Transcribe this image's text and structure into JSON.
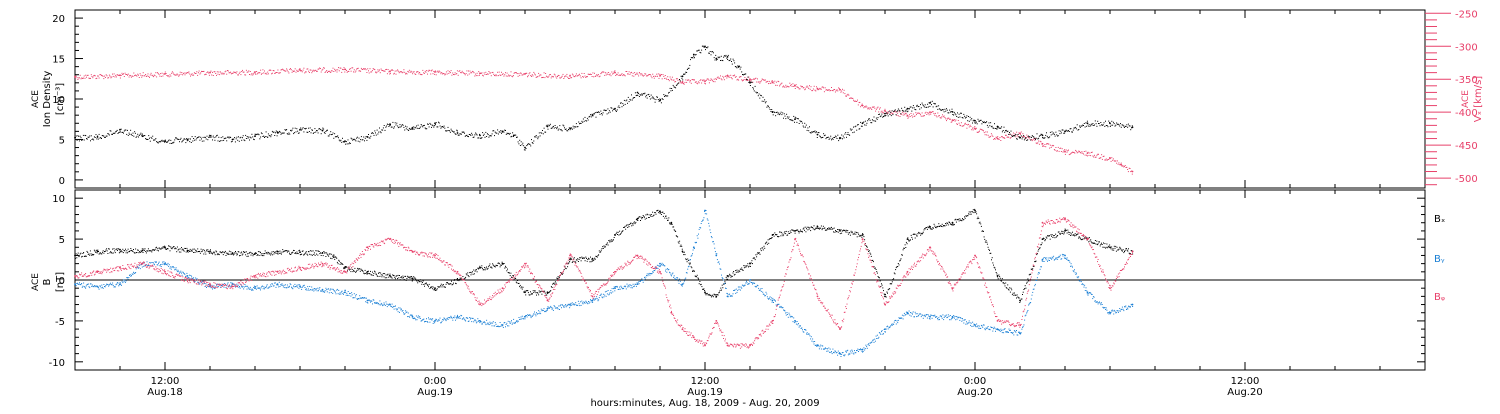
{
  "colors": {
    "black": "#000000",
    "pink": "#e8406a",
    "blue": "#1a7fd4"
  },
  "x_axis": {
    "range_hours": [
      0,
      60
    ],
    "major_ticks": [
      {
        "h": 4,
        "time": "12:00",
        "date": "Aug.18"
      },
      {
        "h": 16,
        "time": "0:00",
        "date": "Aug.19"
      },
      {
        "h": 28,
        "time": "12:00",
        "date": "Aug.19"
      },
      {
        "h": 40,
        "time": "0:00",
        "date": "Aug.20"
      },
      {
        "h": 52,
        "time": "12:00",
        "date": "Aug.20"
      }
    ],
    "title": "hours:minutes, Aug. 18, 2009 - Aug. 20, 2009"
  },
  "chart_data": [
    {
      "type": "scatter",
      "panel": "top",
      "ylabel_left": [
        "ACE",
        "Ion Density",
        "[cm⁻³]"
      ],
      "ylabel_right": [
        "ACE",
        "Vₓ [km/s]"
      ],
      "ylim_left": [
        -1,
        21
      ],
      "yticks_left": [
        0,
        5,
        10,
        15,
        20
      ],
      "ylim_right": [
        -515,
        -245
      ],
      "yticks_right": [
        -500,
        -450,
        -400,
        -350,
        -300,
        -250
      ],
      "series": [
        {
          "axis": "left",
          "color": "black",
          "points": [
            [
              0,
              5.2
            ],
            [
              1,
              5.3
            ],
            [
              2,
              6.2
            ],
            [
              3,
              5.4
            ],
            [
              4,
              4.8
            ],
            [
              5,
              5.0
            ],
            [
              6,
              5.3
            ],
            [
              7,
              5.0
            ],
            [
              8,
              5.4
            ],
            [
              9,
              5.9
            ],
            [
              10,
              6.2
            ],
            [
              11,
              6.1
            ],
            [
              12,
              4.8
            ],
            [
              13,
              5.3
            ],
            [
              14,
              6.9
            ],
            [
              15,
              6.3
            ],
            [
              16,
              7.0
            ],
            [
              17,
              5.8
            ],
            [
              18,
              5.5
            ],
            [
              19,
              6.0
            ],
            [
              19.5,
              5.5
            ],
            [
              20,
              4.0
            ],
            [
              21,
              6.6
            ],
            [
              22,
              6.4
            ],
            [
              23,
              8.0
            ],
            [
              24,
              8.8
            ],
            [
              25,
              10.8
            ],
            [
              26,
              9.8
            ],
            [
              27,
              12.8
            ],
            [
              27.5,
              15.5
            ],
            [
              28,
              16.5
            ],
            [
              28.5,
              15.0
            ],
            [
              29,
              15.2
            ],
            [
              29.5,
              14.0
            ],
            [
              30,
              12.0
            ],
            [
              31,
              8.4
            ],
            [
              32,
              7.5
            ],
            [
              33,
              5.6
            ],
            [
              34,
              5.2
            ],
            [
              35,
              7.0
            ],
            [
              36,
              8.2
            ],
            [
              37,
              8.8
            ],
            [
              38,
              9.5
            ],
            [
              39,
              8.4
            ],
            [
              40,
              7.3
            ],
            [
              41,
              6.6
            ],
            [
              42,
              5.2
            ],
            [
              43,
              5.5
            ],
            [
              44,
              6.0
            ],
            [
              45,
              7.0
            ],
            [
              46,
              7.0
            ],
            [
              47,
              6.5
            ]
          ]
        },
        {
          "axis": "right",
          "color": "pink",
          "points": [
            [
              0,
              -346
            ],
            [
              2,
              -344
            ],
            [
              4,
              -342
            ],
            [
              6,
              -340
            ],
            [
              8,
              -339
            ],
            [
              10,
              -336
            ],
            [
              12,
              -335
            ],
            [
              14,
              -338
            ],
            [
              16,
              -339
            ],
            [
              18,
              -341
            ],
            [
              20,
              -342
            ],
            [
              22,
              -345
            ],
            [
              24,
              -340
            ],
            [
              26,
              -345
            ],
            [
              27,
              -354
            ],
            [
              28,
              -353
            ],
            [
              29,
              -345
            ],
            [
              30,
              -350
            ],
            [
              31,
              -355
            ],
            [
              32,
              -360
            ],
            [
              33,
              -364
            ],
            [
              34,
              -366
            ],
            [
              35,
              -390
            ],
            [
              36,
              -398
            ],
            [
              37,
              -405
            ],
            [
              38,
              -400
            ],
            [
              39,
              -412
            ],
            [
              40,
              -425
            ],
            [
              41,
              -440
            ],
            [
              42,
              -432
            ],
            [
              43,
              -448
            ],
            [
              44,
              -460
            ],
            [
              45,
              -462
            ],
            [
              46,
              -470
            ],
            [
              46.5,
              -480
            ],
            [
              47,
              -490
            ]
          ]
        }
      ]
    },
    {
      "type": "scatter",
      "panel": "bottom",
      "ylabel_left": [
        "ACE",
        "B",
        "[nT]"
      ],
      "ylim": [
        -11,
        11
      ],
      "yticks": [
        -10,
        -5,
        0,
        5,
        10
      ],
      "zero_line": true,
      "series": [
        {
          "name": "Bₓ",
          "color": "black",
          "points": [
            [
              0,
              3.0
            ],
            [
              1,
              3.5
            ],
            [
              2,
              3.7
            ],
            [
              3,
              3.6
            ],
            [
              4,
              4.0
            ],
            [
              5,
              3.6
            ],
            [
              6,
              3.5
            ],
            [
              7,
              3.3
            ],
            [
              8,
              3.2
            ],
            [
              9,
              3.5
            ],
            [
              10,
              3.4
            ],
            [
              11,
              3.3
            ],
            [
              11.5,
              2.8
            ],
            [
              12,
              1.5
            ],
            [
              13,
              1.0
            ],
            [
              14,
              0.5
            ],
            [
              15,
              0.2
            ],
            [
              16,
              -1.0
            ],
            [
              17,
              0.0
            ],
            [
              18,
              1.5
            ],
            [
              19,
              2.0
            ],
            [
              20,
              -1.5
            ],
            [
              21,
              -1.5
            ],
            [
              22,
              2.5
            ],
            [
              23,
              2.6
            ],
            [
              24,
              5.5
            ],
            [
              25,
              7.5
            ],
            [
              26,
              8.4
            ],
            [
              26.5,
              7.0
            ],
            [
              27,
              3.5
            ],
            [
              28,
              -1.5
            ],
            [
              28.5,
              -2.0
            ],
            [
              29,
              0.5
            ],
            [
              30,
              2.0
            ],
            [
              31,
              5.5
            ],
            [
              32,
              6.0
            ],
            [
              33,
              6.5
            ],
            [
              34,
              6.0
            ],
            [
              35,
              5.5
            ],
            [
              36,
              -2.0
            ],
            [
              37,
              5.0
            ],
            [
              38,
              6.5
            ],
            [
              39,
              7.0
            ],
            [
              40,
              8.5
            ],
            [
              41,
              0.5
            ],
            [
              42,
              -2.5
            ],
            [
              43,
              5.0
            ],
            [
              44,
              6.0
            ],
            [
              45,
              5.0
            ],
            [
              46,
              4.0
            ],
            [
              47,
              3.5
            ]
          ]
        },
        {
          "name": "Bᵧ",
          "color": "blue",
          "points": [
            [
              0,
              -0.5
            ],
            [
              1,
              -0.8
            ],
            [
              2,
              -0.5
            ],
            [
              3,
              2.0
            ],
            [
              4,
              2.0
            ],
            [
              5,
              0.5
            ],
            [
              6,
              -0.8
            ],
            [
              7,
              -0.5
            ],
            [
              8,
              -1.0
            ],
            [
              9,
              -0.5
            ],
            [
              10,
              -0.8
            ],
            [
              11,
              -1.2
            ],
            [
              12,
              -1.5
            ],
            [
              13,
              -2.5
            ],
            [
              14,
              -3.0
            ],
            [
              15,
              -4.5
            ],
            [
              16,
              -5.0
            ],
            [
              17,
              -4.5
            ],
            [
              18,
              -5.0
            ],
            [
              19,
              -5.5
            ],
            [
              20,
              -4.5
            ],
            [
              21,
              -3.5
            ],
            [
              22,
              -3.0
            ],
            [
              23,
              -2.5
            ],
            [
              24,
              -1.0
            ],
            [
              25,
              -0.5
            ],
            [
              26,
              2.0
            ],
            [
              27,
              -0.5
            ],
            [
              27.5,
              4.0
            ],
            [
              28,
              8.5
            ],
            [
              28.5,
              3.0
            ],
            [
              29,
              -2.0
            ],
            [
              30,
              0.0
            ],
            [
              31,
              -2.5
            ],
            [
              32,
              -5.0
            ],
            [
              33,
              -8.0
            ],
            [
              34,
              -9.0
            ],
            [
              35,
              -8.5
            ],
            [
              36,
              -6.0
            ],
            [
              37,
              -4.0
            ],
            [
              38,
              -4.5
            ],
            [
              39,
              -4.5
            ],
            [
              40,
              -5.5
            ],
            [
              41,
              -6.0
            ],
            [
              42,
              -6.5
            ],
            [
              43,
              2.5
            ],
            [
              44,
              3.0
            ],
            [
              45,
              -1.5
            ],
            [
              46,
              -4.0
            ],
            [
              47,
              -3.0
            ]
          ]
        },
        {
          "name": "Bᵩ",
          "color": "pink",
          "points": [
            [
              0,
              0.5
            ],
            [
              1,
              1.0
            ],
            [
              2,
              1.5
            ],
            [
              3,
              2.0
            ],
            [
              4,
              1.0
            ],
            [
              5,
              0.0
            ],
            [
              6,
              -0.5
            ],
            [
              7,
              -0.8
            ],
            [
              8,
              0.5
            ],
            [
              9,
              1.0
            ],
            [
              10,
              1.5
            ],
            [
              11,
              2.0
            ],
            [
              12,
              1.0
            ],
            [
              13,
              4.0
            ],
            [
              14,
              5.0
            ],
            [
              15,
              3.5
            ],
            [
              16,
              3.0
            ],
            [
              17,
              1.0
            ],
            [
              18,
              -3.0
            ],
            [
              19,
              -1.0
            ],
            [
              20,
              2.0
            ],
            [
              21,
              -2.5
            ],
            [
              22,
              3.0
            ],
            [
              23,
              -2.0
            ],
            [
              24,
              1.0
            ],
            [
              25,
              3.0
            ],
            [
              26,
              1.0
            ],
            [
              26.5,
              -4.0
            ],
            [
              27,
              -6.0
            ],
            [
              27.5,
              -7.0
            ],
            [
              28,
              -8.0
            ],
            [
              28.5,
              -5.0
            ],
            [
              29,
              -8.0
            ],
            [
              30,
              -8.0
            ],
            [
              31,
              -5.0
            ],
            [
              32,
              5.0
            ],
            [
              33,
              -2.0
            ],
            [
              34,
              -6.0
            ],
            [
              35,
              5.0
            ],
            [
              36,
              -3.0
            ],
            [
              37,
              1.0
            ],
            [
              38,
              4.0
            ],
            [
              39,
              -1.0
            ],
            [
              40,
              3.0
            ],
            [
              41,
              -5.0
            ],
            [
              42,
              -5.5
            ],
            [
              43,
              7.0
            ],
            [
              44,
              7.5
            ],
            [
              45,
              5.0
            ],
            [
              46,
              -1.0
            ],
            [
              47,
              3.5
            ]
          ]
        }
      ]
    }
  ]
}
